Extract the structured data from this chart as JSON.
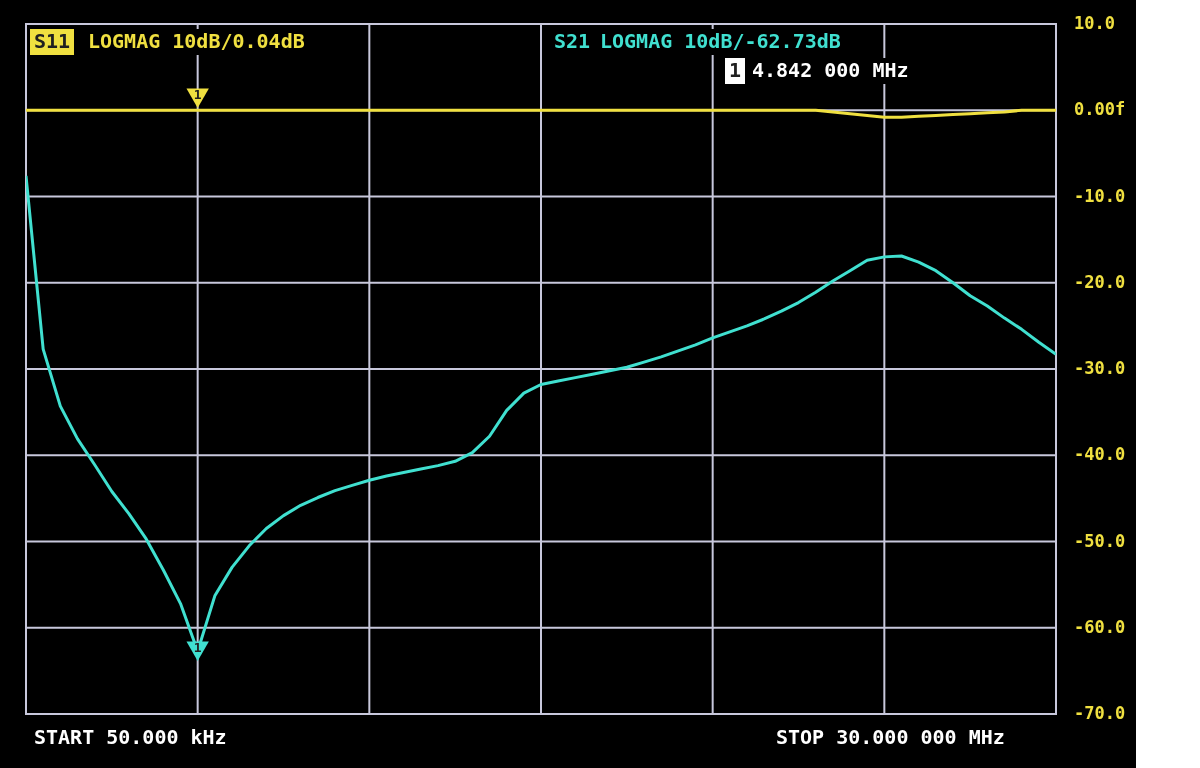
{
  "chart_data": {
    "type": "line",
    "categories": [
      null,
      null,
      null,
      null,
      null,
      null,
      null,
      null,
      null,
      null,
      null,
      null,
      null,
      null,
      null,
      null,
      null,
      null,
      null,
      null,
      null,
      null,
      null,
      null,
      null,
      null,
      null,
      null,
      null,
      null,
      null,
      null,
      null,
      null,
      null,
      null,
      null,
      null,
      null,
      null,
      null,
      null,
      null,
      null,
      null,
      null,
      null,
      null,
      null,
      null,
      null,
      null,
      null,
      null,
      null,
      null,
      null,
      null,
      null,
      null,
      null
    ],
    "ylim": [
      -70,
      10
    ],
    "yticks": [
      {
        "value": 10,
        "label": "10.0"
      },
      {
        "value": 0,
        "label": "0.00f"
      },
      {
        "value": -10,
        "label": "-10.0"
      },
      {
        "value": -20,
        "label": "-20.0"
      },
      {
        "value": -30,
        "label": "-30.0"
      },
      {
        "value": -40,
        "label": "-40.0"
      },
      {
        "value": -50,
        "label": "-50.0"
      },
      {
        "value": -60,
        "label": "-60.0"
      },
      {
        "value": -70,
        "label": "-70.0"
      }
    ],
    "grid": true,
    "marker": "none",
    "line_style": "solid",
    "series": [
      {
        "name": "S11",
        "color": "#f0e040",
        "values": [
          0,
          0,
          0,
          0,
          0,
          0,
          0,
          0,
          0,
          0,
          0,
          0,
          0,
          0,
          0,
          0,
          0,
          0,
          0,
          0,
          0,
          0,
          0,
          0,
          0,
          0,
          0,
          0,
          0,
          0,
          0,
          0,
          0,
          0,
          0,
          0,
          0,
          0,
          0,
          0,
          0,
          0,
          0,
          0,
          0,
          0,
          0,
          -0.2,
          -0.4,
          -0.6,
          -0.8,
          -0.8,
          -0.7,
          -0.6,
          -0.5,
          -0.4,
          -0.3,
          -0.2,
          0,
          0,
          0
        ]
      },
      {
        "name": "S21",
        "color": "#40e0d0",
        "values": [
          -7.6,
          -27.7,
          -34.3,
          -38.1,
          -41.1,
          -44.2,
          -46.8,
          -49.7,
          -53.3,
          -57.2,
          -62.73,
          -56.3,
          -53.0,
          -50.5,
          -48.5,
          -47.0,
          -45.8,
          -44.9,
          -44.1,
          -43.5,
          -42.9,
          -42.4,
          -42.0,
          -41.6,
          -41.2,
          -40.7,
          -39.7,
          -37.8,
          -34.8,
          -32.8,
          -31.8,
          -31.4,
          -31.0,
          -30.6,
          -30.2,
          -29.8,
          -29.2,
          -28.6,
          -27.9,
          -27.2,
          -26.4,
          -25.7,
          -25.0,
          -24.2,
          -23.3,
          -22.3,
          -21.1,
          -19.8,
          -18.6,
          -17.4,
          -17.0,
          -16.9,
          -17.6,
          -18.6,
          -20.0,
          -21.5,
          -22.7,
          -24.1,
          -25.4,
          -26.9,
          -28.3
        ]
      }
    ],
    "annotations": [
      "LOGMAG 10dB/0.04dB",
      "LOGMAG 10dB/-62.73dB",
      "1",
      "4.842 000 MHz",
      "START 50.000 kHz",
      "STOP 30.000 000 MHz",
      "1",
      "1"
    ]
  }
}
